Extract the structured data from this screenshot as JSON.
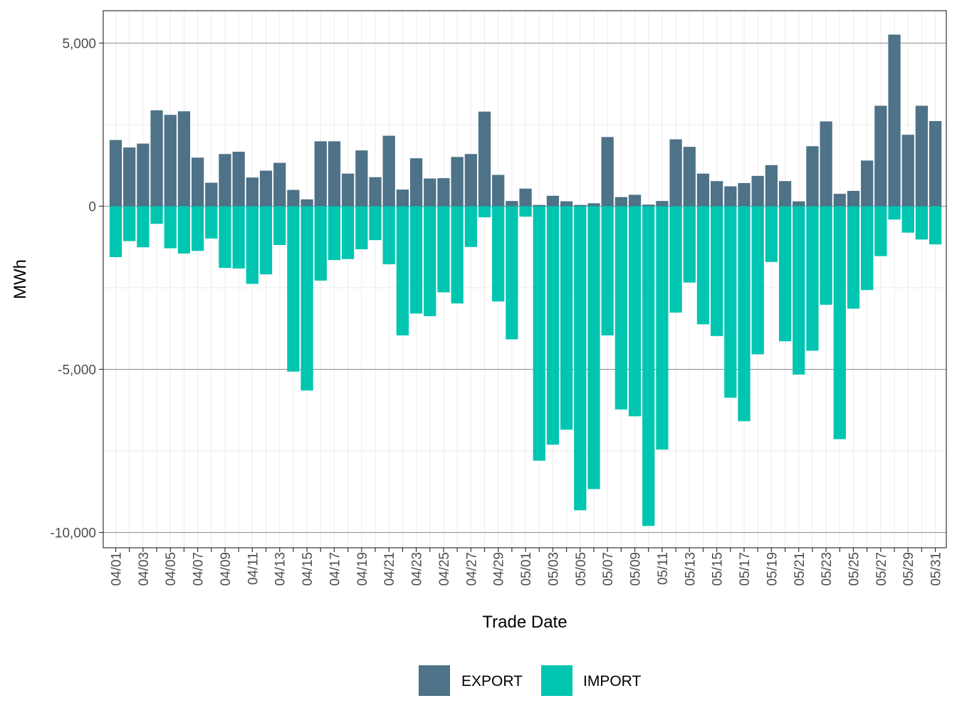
{
  "chart_data": {
    "type": "bar",
    "stacked": true,
    "xlabel": "Trade Date",
    "ylabel": "MWh",
    "ylim": [
      -10500,
      6000
    ],
    "y_ticks": [
      5000,
      0,
      -5000,
      -10000
    ],
    "y_tick_labels": [
      "5,000",
      "0",
      "-5,000",
      "-10,000"
    ],
    "grid": true,
    "legend_position": "bottom",
    "categories": [
      "04/01",
      "04/02",
      "04/03",
      "04/04",
      "04/05",
      "04/06",
      "04/07",
      "04/08",
      "04/09",
      "04/10",
      "04/11",
      "04/12",
      "04/13",
      "04/14",
      "04/15",
      "04/16",
      "04/17",
      "04/18",
      "04/19",
      "04/20",
      "04/21",
      "04/22",
      "04/23",
      "04/24",
      "04/25",
      "04/26",
      "04/27",
      "04/28",
      "04/29",
      "04/30",
      "05/01",
      "05/02",
      "05/03",
      "05/04",
      "05/05",
      "05/06",
      "05/07",
      "05/08",
      "05/09",
      "05/10",
      "05/11",
      "05/12",
      "05/13",
      "05/14",
      "05/15",
      "05/16",
      "05/17",
      "05/18",
      "05/19",
      "05/20",
      "05/21",
      "05/22",
      "05/23",
      "05/24",
      "05/25",
      "05/26",
      "05/27",
      "05/28",
      "05/29",
      "05/30",
      "05/31"
    ],
    "x_tick_labels": [
      "04/01",
      "04/03",
      "04/05",
      "04/07",
      "04/09",
      "04/11",
      "04/13",
      "04/15",
      "04/17",
      "04/19",
      "04/21",
      "04/23",
      "04/25",
      "04/27",
      "04/29",
      "05/01",
      "05/03",
      "05/05",
      "05/07",
      "05/09",
      "05/11",
      "05/13",
      "05/15",
      "05/17",
      "05/19",
      "05/21",
      "05/23",
      "05/25",
      "05/27",
      "05/29",
      "05/31"
    ],
    "series": [
      {
        "name": "EXPORT",
        "color": "#4e7287",
        "values": [
          2030,
          1800,
          1920,
          2940,
          2800,
          2910,
          1490,
          720,
          1600,
          1670,
          880,
          1090,
          1330,
          500,
          210,
          1990,
          1990,
          1000,
          1710,
          890,
          2160,
          510,
          1470,
          850,
          860,
          1510,
          1600,
          2900,
          960,
          160,
          540,
          40,
          320,
          150,
          40,
          90,
          2120,
          280,
          350,
          50,
          160,
          2050,
          1820,
          1000,
          770,
          610,
          710,
          930,
          1260,
          770,
          150,
          1840,
          2600,
          380,
          470,
          1400,
          3080,
          5260,
          2190,
          3080,
          2610
        ]
      },
      {
        "name": "IMPORT",
        "color": "#00c5b0",
        "values": [
          -1560,
          -1070,
          -1260,
          -540,
          -1290,
          -1450,
          -1370,
          -990,
          -1890,
          -1910,
          -2380,
          -2090,
          -1190,
          -5070,
          -5650,
          -2280,
          -1650,
          -1620,
          -1320,
          -1040,
          -1780,
          -3960,
          -3290,
          -3370,
          -2640,
          -2980,
          -1250,
          -340,
          -2920,
          -4080,
          -320,
          -7800,
          -7310,
          -6850,
          -9320,
          -8670,
          -3960,
          -6230,
          -6440,
          -9800,
          -7460,
          -3260,
          -2340,
          -3620,
          -3980,
          -5870,
          -6590,
          -4540,
          -1710,
          -4140,
          -5160,
          -4430,
          -3020,
          -7140,
          -3140,
          -2570,
          -1530,
          -410,
          -810,
          -1020,
          -1170
        ]
      }
    ]
  }
}
